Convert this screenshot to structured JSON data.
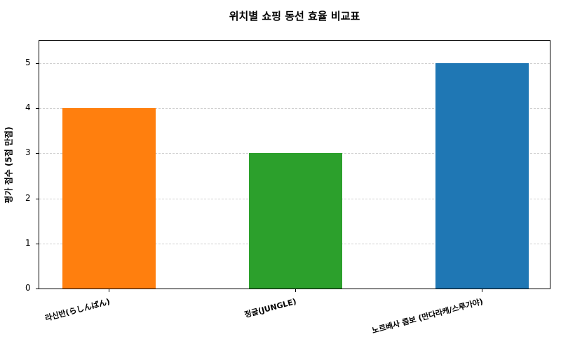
{
  "chart_data": {
    "type": "bar",
    "title": "위치별 쇼핑 동선 효율 비교표",
    "xlabel": "",
    "ylabel": "평가 점수 (5점 만점)",
    "categories": [
      "라신반(らしんばん)",
      "정글(JUNGLE)",
      "노르베사 콤보 (만다라케/스루가야)"
    ],
    "values": [
      4,
      3,
      5
    ],
    "colors": [
      "#ff7f0e",
      "#2ca02c",
      "#1f77b4"
    ],
    "ylim": [
      0,
      5.5
    ],
    "yticks": [
      0,
      1,
      2,
      3,
      4,
      5
    ],
    "grid": "y-dashed",
    "legend": null
  }
}
